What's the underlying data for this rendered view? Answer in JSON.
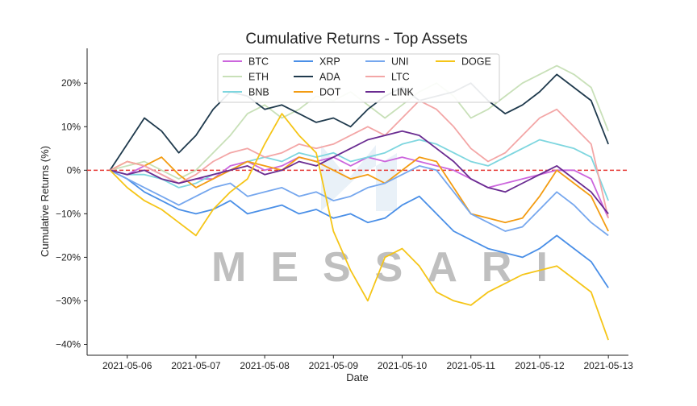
{
  "chart_data": {
    "type": "line",
    "title": "Cumulative Returns - Top Assets",
    "xlabel": "Date",
    "ylabel": "Cumulative Returns (%)",
    "watermark": "MESSARI",
    "x_ticks": [
      "2021-05-06",
      "2021-05-07",
      "2021-05-08",
      "2021-05-09",
      "2021-05-10",
      "2021-05-11",
      "2021-05-12",
      "2021-05-13"
    ],
    "xlim": [
      "2021-05-05 10:00",
      "2021-05-13 07:00"
    ],
    "y_ticks": [
      "20%",
      "10%",
      "0%",
      "−10%",
      "−20%",
      "−30%",
      "−40%"
    ],
    "y_tick_values": [
      20,
      10,
      0,
      -10,
      -20,
      -30,
      -40
    ],
    "ylim": [
      -42.5,
      28
    ],
    "grid": false,
    "legend_position": "top-center",
    "zero_line_color": "#e53935",
    "x": [
      "2021-05-05 18:00",
      "2021-05-06 00:00",
      "2021-05-06 06:00",
      "2021-05-06 12:00",
      "2021-05-06 18:00",
      "2021-05-07 00:00",
      "2021-05-07 06:00",
      "2021-05-07 12:00",
      "2021-05-07 18:00",
      "2021-05-08 00:00",
      "2021-05-08 06:00",
      "2021-05-08 12:00",
      "2021-05-08 18:00",
      "2021-05-09 00:00",
      "2021-05-09 06:00",
      "2021-05-09 12:00",
      "2021-05-09 18:00",
      "2021-05-10 00:00",
      "2021-05-10 06:00",
      "2021-05-10 12:00",
      "2021-05-10 18:00",
      "2021-05-11 00:00",
      "2021-05-11 06:00",
      "2021-05-11 12:00",
      "2021-05-11 18:00",
      "2021-05-12 00:00",
      "2021-05-12 06:00",
      "2021-05-12 12:00",
      "2021-05-12 18:00",
      "2021-05-13 00:00"
    ],
    "series": [
      {
        "name": "BTC",
        "color": "#cc66dd",
        "values": [
          0,
          -1,
          1,
          -1,
          -3,
          -2,
          -2,
          1,
          2,
          0,
          1,
          3,
          2,
          3,
          1,
          3,
          2,
          3,
          2,
          1,
          0,
          -2,
          -4,
          -3,
          -2,
          -1,
          0,
          0,
          -2,
          -11
        ]
      },
      {
        "name": "ETH",
        "color": "#c8e0b8",
        "values": [
          0,
          1,
          2,
          0,
          -2,
          0,
          4,
          8,
          13,
          15,
          12,
          14,
          17,
          16,
          18,
          15,
          12,
          15,
          18,
          20,
          17,
          12,
          14,
          17,
          20,
          22,
          24,
          22,
          19,
          9
        ]
      },
      {
        "name": "BNB",
        "color": "#7ed6df",
        "values": [
          0,
          -1,
          -1,
          -2,
          -4,
          -3,
          -1,
          0,
          2,
          3,
          2,
          4,
          3,
          4,
          2,
          3,
          4,
          6,
          7,
          6,
          4,
          2,
          1,
          3,
          5,
          7,
          6,
          5,
          3,
          -7
        ]
      },
      {
        "name": "XRP",
        "color": "#4a8fe7",
        "values": [
          0,
          -2,
          -5,
          -7,
          -9,
          -10,
          -9,
          -7,
          -10,
          -9,
          -8,
          -10,
          -9,
          -11,
          -10,
          -12,
          -11,
          -8,
          -6,
          -10,
          -14,
          -16,
          -18,
          -19,
          -20,
          -18,
          -15,
          -18,
          -21,
          -27
        ]
      },
      {
        "name": "ADA",
        "color": "#1f3a4d",
        "values": [
          0,
          6,
          12,
          9,
          4,
          8,
          14,
          18,
          17,
          14,
          15,
          13,
          11,
          12,
          10,
          14,
          17,
          19,
          16,
          17,
          18,
          20,
          16,
          13,
          15,
          18,
          22,
          19,
          16,
          6
        ]
      },
      {
        "name": "DOT",
        "color": "#f39c12",
        "values": [
          0,
          2,
          1,
          3,
          -1,
          -4,
          -2,
          0,
          2,
          1,
          0,
          3,
          2,
          0,
          -2,
          -1,
          -3,
          0,
          3,
          2,
          -4,
          -10,
          -11,
          -12,
          -11,
          -6,
          0,
          -3,
          -6,
          -14
        ]
      },
      {
        "name": "UNI",
        "color": "#76a7ee",
        "values": [
          0,
          -2,
          -4,
          -6,
          -8,
          -6,
          -4,
          -3,
          -6,
          -5,
          -4,
          -6,
          -5,
          -7,
          -6,
          -4,
          -3,
          -1,
          1,
          0,
          -5,
          -10,
          -12,
          -14,
          -13,
          -9,
          -5,
          -8,
          -12,
          -15
        ]
      },
      {
        "name": "LTC",
        "color": "#f3a6a6",
        "values": [
          0,
          2,
          1,
          -1,
          -3,
          -1,
          2,
          4,
          5,
          3,
          4,
          6,
          5,
          6,
          8,
          10,
          8,
          12,
          16,
          14,
          10,
          5,
          2,
          4,
          8,
          12,
          14,
          10,
          6,
          -11
        ]
      },
      {
        "name": "LINK",
        "color": "#6a2c91",
        "values": [
          0,
          -1,
          0,
          -2,
          -3,
          -2,
          -1,
          0,
          1,
          -1,
          0,
          2,
          1,
          3,
          5,
          7,
          8,
          9,
          8,
          5,
          2,
          -2,
          -4,
          -5,
          -3,
          -1,
          1,
          -2,
          -5,
          -10
        ]
      },
      {
        "name": "DOGE",
        "color": "#f5c518",
        "values": [
          0,
          -4,
          -7,
          -9,
          -12,
          -15,
          -9,
          -5,
          -2,
          6,
          13,
          8,
          4,
          -14,
          -23,
          -30,
          -20,
          -18,
          -22,
          -28,
          -30,
          -31,
          -28,
          -26,
          -24,
          -23,
          -22,
          -25,
          -28,
          -39
        ]
      }
    ]
  }
}
